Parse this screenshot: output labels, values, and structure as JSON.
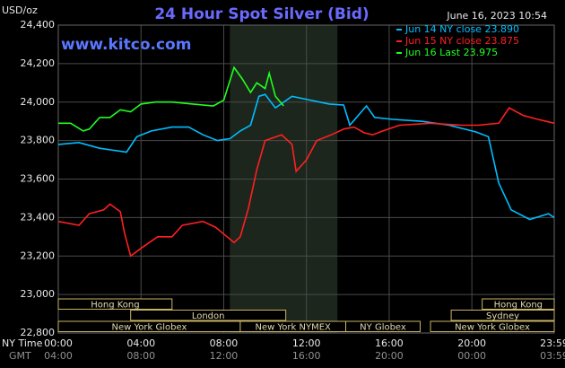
{
  "chart_data": {
    "type": "line",
    "title": "24 Hour Spot Silver (Bid)",
    "unit_label": "USD/oz",
    "timestamp": "June 16, 2023 10:54",
    "watermark": "www.kitco.com",
    "x_row_label": "NY Time",
    "x2_row_label": "GMT",
    "xlim": [
      0,
      23.983
    ],
    "xticks": [
      {
        "value": 0,
        "label": "00:00"
      },
      {
        "value": 4,
        "label": "04:00"
      },
      {
        "value": 8,
        "label": "08:00"
      },
      {
        "value": 12,
        "label": "12:00"
      },
      {
        "value": 16,
        "label": "16:00"
      },
      {
        "value": 20,
        "label": "20:00"
      },
      {
        "value": 23.983,
        "label": "23:59"
      }
    ],
    "x2_tick_labels": [
      "04:00",
      "08:00",
      "12:00",
      "16:00",
      "20:00",
      "00:00",
      "03:59"
    ],
    "ylim": [
      22.8,
      24.4
    ],
    "yticks": [
      {
        "value": 22.8,
        "label": "22,800"
      },
      {
        "value": 23.0,
        "label": "23,000"
      },
      {
        "value": 23.2,
        "label": "23,200"
      },
      {
        "value": 23.4,
        "label": "23,400"
      },
      {
        "value": 23.6,
        "label": "23,600"
      },
      {
        "value": 23.8,
        "label": "23,800"
      },
      {
        "value": 24.0,
        "label": "24,000"
      },
      {
        "value": 24.2,
        "label": "24,200"
      },
      {
        "value": 24.4,
        "label": "24,400"
      }
    ],
    "grid": true,
    "highlight_x": [
      8.3,
      13.5
    ],
    "series": [
      {
        "name": "Jun 14 NY close 23.890",
        "color": "#00bfff",
        "x": [
          0,
          1,
          2,
          3.3,
          3.8,
          4.5,
          5.5,
          6.3,
          7,
          7.7,
          8.3,
          8.8,
          9.3,
          9.7,
          10,
          10.5,
          11.3,
          12.2,
          13.1,
          13.8,
          14.1,
          14.9,
          15.3,
          16.2,
          17.6,
          18.9,
          20.2,
          20.8,
          21.3,
          21.9,
          22.8,
          23.7,
          23.983
        ],
        "values": [
          23.78,
          23.79,
          23.76,
          23.74,
          23.82,
          23.85,
          23.87,
          23.87,
          23.83,
          23.8,
          23.81,
          23.85,
          23.88,
          24.03,
          24.04,
          23.97,
          24.03,
          24.01,
          23.99,
          23.985,
          23.88,
          23.98,
          23.92,
          23.91,
          23.9,
          23.88,
          23.845,
          23.82,
          23.58,
          23.44,
          23.39,
          23.42,
          23.4
        ]
      },
      {
        "name": "Jun 15 NY close 23.875",
        "color": "#ff2020",
        "x": [
          0,
          1,
          1.5,
          2.2,
          2.5,
          3,
          3.2,
          3.5,
          4,
          4.8,
          5.5,
          6,
          7,
          7.6,
          8.5,
          8.8,
          9.2,
          9.6,
          10,
          10.8,
          11.3,
          11.5,
          12,
          12.5,
          13.2,
          13.8,
          14.3,
          14.8,
          15.2,
          15.7,
          16.5,
          18,
          19.5,
          20.3,
          21.3,
          21.8,
          22.5,
          23.2,
          23.6,
          23.983
        ],
        "values": [
          23.38,
          23.36,
          23.42,
          23.44,
          23.47,
          23.43,
          23.32,
          23.2,
          23.24,
          23.3,
          23.3,
          23.36,
          23.38,
          23.35,
          23.27,
          23.3,
          23.45,
          23.65,
          23.8,
          23.83,
          23.78,
          23.64,
          23.7,
          23.8,
          23.83,
          23.86,
          23.87,
          23.84,
          23.83,
          23.85,
          23.88,
          23.89,
          23.88,
          23.88,
          23.89,
          23.97,
          23.93,
          23.91,
          23.9,
          23.89
        ]
      },
      {
        "name": "Jun 16 Last 23.975",
        "color": "#20ff20",
        "x": [
          0,
          0.6,
          1.2,
          1.5,
          2,
          2.5,
          3,
          3.5,
          4,
          4.7,
          5.5,
          6.5,
          7.5,
          8,
          8.5,
          8.9,
          9.3,
          9.6,
          10,
          10.2,
          10.5,
          10.9
        ],
        "values": [
          23.89,
          23.89,
          23.85,
          23.86,
          23.92,
          23.92,
          23.96,
          23.95,
          23.99,
          24.0,
          24.0,
          23.99,
          23.98,
          24.01,
          24.18,
          24.12,
          24.05,
          24.1,
          24.07,
          24.15,
          24.03,
          23.98
        ]
      }
    ],
    "session_rows": [
      [
        {
          "label": "Hong Kong",
          "start": 0,
          "end": 5.5
        },
        {
          "label": "Hong Kong",
          "start": 20.5,
          "end": 23.983
        }
      ],
      [
        {
          "label": "London",
          "start": 3.5,
          "end": 11
        },
        {
          "label": "Sydney",
          "start": 19,
          "end": 23.983
        }
      ],
      [
        {
          "label": "New York Globex",
          "start": 0,
          "end": 8.8
        },
        {
          "label": "New York NYMEX",
          "start": 8.8,
          "end": 13.9
        },
        {
          "label": "NY Globex",
          "start": 13.9,
          "end": 17.5
        },
        {
          "label": "New York Globex",
          "start": 18,
          "end": 23.983
        }
      ]
    ]
  }
}
